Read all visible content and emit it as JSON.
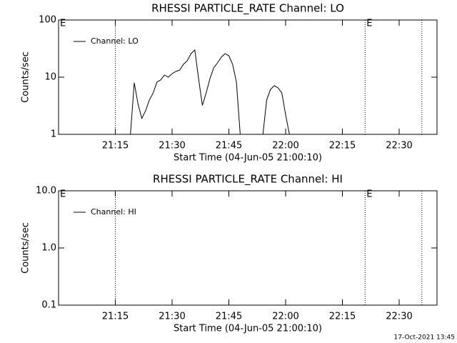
{
  "chart_data": [
    {
      "type": "line",
      "title": "RHESSI PARTICLE_RATE Channel: LO",
      "xlabel": "Start Time (04-Jun-05 21:00:10)",
      "ylabel": "Counts/sec",
      "log_y": true,
      "xlim": [
        "21:00",
        "22:40"
      ],
      "ylim": [
        1,
        100
      ],
      "yticks": [
        1,
        10,
        100
      ],
      "xticks": [
        "21:15",
        "21:30",
        "21:45",
        "22:00",
        "22:15",
        "22:30"
      ],
      "legend": "upper left",
      "vlines": [
        "21:15",
        "22:21",
        "22:36"
      ],
      "annotations": [
        {
          "text": "E",
          "x": "21:00"
        },
        {
          "text": "E",
          "x": "22:21"
        }
      ],
      "x": [
        "21:19",
        "21:20",
        "21:21",
        "21:22",
        "21:23",
        "21:24",
        "21:25",
        "21:26",
        "21:27",
        "21:28",
        "21:29",
        "21:30",
        "21:31",
        "21:32",
        "21:33",
        "21:34",
        "21:35",
        "21:36",
        "21:37",
        "21:38",
        "21:39",
        "21:40",
        "21:41",
        "21:42",
        "21:43",
        "21:44",
        "21:45",
        "21:46",
        "21:47",
        "21:48",
        "21:50",
        "21:54",
        "21:55",
        "21:56",
        "21:57",
        "21:58",
        "21:59",
        "22:00",
        "22:01"
      ],
      "series": [
        {
          "name": "Channel: LO",
          "color": "#000000",
          "values": [
            1,
            8,
            3.4,
            1.9,
            2.6,
            4,
            5.3,
            8.2,
            9,
            10.9,
            10,
            11.5,
            12.6,
            13.3,
            16.8,
            19.4,
            25.8,
            29.9,
            9.4,
            3.2,
            5.3,
            9.4,
            14.6,
            17.8,
            22.4,
            25.8,
            23.7,
            16.8,
            8.2,
            1,
            null,
            1,
            4,
            6.1,
            7.1,
            6.5,
            5.3,
            2.2,
            1
          ]
        }
      ]
    },
    {
      "type": "line",
      "title": "RHESSI PARTICLE_RATE Channel: HI",
      "xlabel": "Start Time (04-Jun-05 21:00:10)",
      "ylabel": "Counts/sec",
      "log_y": true,
      "xlim": [
        "21:00",
        "22:40"
      ],
      "ylim": [
        0.1,
        10
      ],
      "yticks": [
        0.1,
        {
          "value": 1,
          "label": "1.0"
        },
        {
          "value": 10,
          "label": "10.0"
        }
      ],
      "xticks": [
        "21:15",
        "21:30",
        "21:45",
        "22:00",
        "22:15",
        "22:30"
      ],
      "legend": "upper left",
      "vlines": [
        "21:15",
        "22:21",
        "22:36"
      ],
      "annotations": [
        {
          "text": "E",
          "x": "21:00"
        },
        {
          "text": "E",
          "x": "22:21"
        }
      ],
      "x": [],
      "series": [
        {
          "name": "Channel: HI",
          "color": "#000000",
          "values": []
        }
      ]
    }
  ],
  "footer": "17-Oct-2021 13:45"
}
